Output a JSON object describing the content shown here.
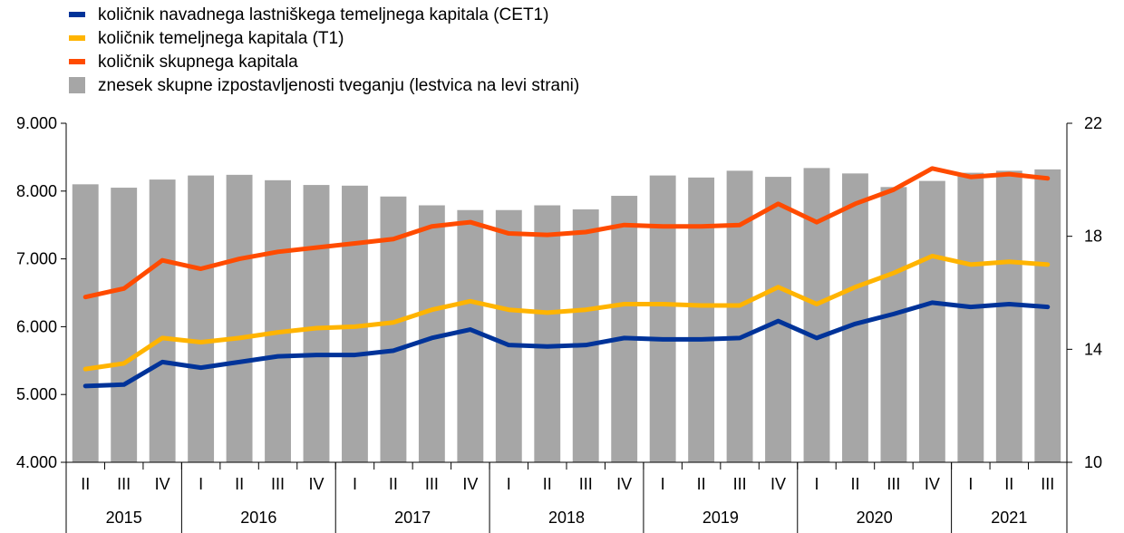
{
  "chart_data": {
    "type": "bar+line",
    "legend": [
      {
        "key": "cet1",
        "label": "količnik navadnega lastniškega temeljnega kapitala (CET1)",
        "color": "#003399",
        "kind": "line"
      },
      {
        "key": "t1",
        "label": "količnik temeljnega kapitala (T1)",
        "color": "#FFB400",
        "kind": "line"
      },
      {
        "key": "total",
        "label": "količnik skupnega kapitala",
        "color": "#FF4B00",
        "kind": "line"
      },
      {
        "key": "exposure",
        "label": "znesek skupne izpostavljenosti tveganju (lestvica na levi strani)",
        "color": "#A6A6A6",
        "kind": "bar"
      }
    ],
    "quarters": [
      "II",
      "III",
      "IV",
      "I",
      "II",
      "III",
      "IV",
      "I",
      "II",
      "III",
      "IV",
      "I",
      "II",
      "III",
      "IV",
      "I",
      "II",
      "III",
      "IV",
      "I",
      "II",
      "III",
      "IV",
      "I",
      "II",
      "III"
    ],
    "years": [
      {
        "label": "2015",
        "count": 3
      },
      {
        "label": "2016",
        "count": 4
      },
      {
        "label": "2017",
        "count": 4
      },
      {
        "label": "2018",
        "count": 4
      },
      {
        "label": "2019",
        "count": 4
      },
      {
        "label": "2020",
        "count": 4
      },
      {
        "label": "2021",
        "count": 3
      }
    ],
    "left_axis": {
      "min": 4000,
      "max": 9000,
      "step": 1000,
      "tick_labels": [
        "4.000",
        "5.000",
        "6.000",
        "7.000",
        "8.000",
        "9.000"
      ]
    },
    "right_axis": {
      "min": 10,
      "max": 22,
      "step": 4,
      "tick_labels": [
        "10",
        "14",
        "18",
        "22"
      ]
    },
    "bars": [
      8100,
      8050,
      8170,
      8230,
      8240,
      8160,
      8090,
      8080,
      7920,
      7790,
      7720,
      7720,
      7790,
      7730,
      7930,
      8230,
      8200,
      8300,
      8210,
      8340,
      8260,
      8060,
      8150,
      8270,
      8300,
      8320
    ],
    "series": [
      {
        "key": "cet1",
        "values": [
          12.7,
          12.75,
          13.55,
          13.35,
          13.55,
          13.75,
          13.8,
          13.8,
          13.95,
          14.4,
          14.7,
          14.15,
          14.1,
          14.15,
          14.4,
          14.35,
          14.35,
          14.4,
          15.0,
          14.4,
          14.9,
          15.25,
          15.65,
          15.5,
          15.6,
          15.5
        ]
      },
      {
        "key": "t1",
        "values": [
          13.3,
          13.5,
          14.4,
          14.25,
          14.4,
          14.6,
          14.75,
          14.8,
          14.95,
          15.4,
          15.7,
          15.4,
          15.3,
          15.4,
          15.6,
          15.6,
          15.55,
          15.55,
          16.2,
          15.6,
          16.2,
          16.7,
          17.3,
          17.0,
          17.1,
          17.0
        ]
      },
      {
        "key": "total",
        "values": [
          15.85,
          16.15,
          17.15,
          16.85,
          17.2,
          17.45,
          17.6,
          17.75,
          17.9,
          18.35,
          18.5,
          18.1,
          18.05,
          18.15,
          18.4,
          18.35,
          18.35,
          18.4,
          19.15,
          18.5,
          19.15,
          19.65,
          20.4,
          20.1,
          20.2,
          20.05
        ]
      }
    ]
  }
}
